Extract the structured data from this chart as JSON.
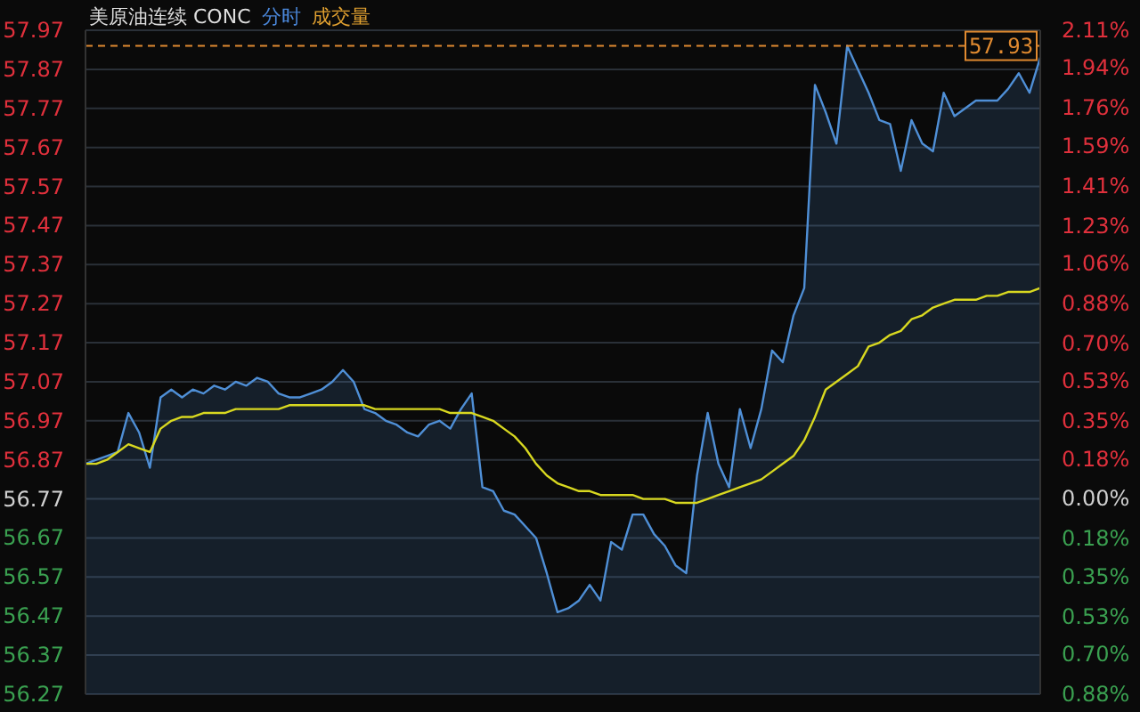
{
  "chart_data": {
    "type": "area",
    "title": "美原油连续 CONC",
    "annotations": [
      "分时",
      "成交量"
    ],
    "categories": [
      null,
      null,
      null,
      null,
      null,
      null,
      null,
      null,
      null,
      null,
      null,
      null,
      null,
      null,
      null,
      null,
      null,
      null,
      null,
      null,
      null,
      null,
      null,
      null,
      null,
      null,
      null,
      null,
      null,
      null,
      null,
      null,
      null,
      null,
      null,
      null,
      null,
      null,
      null,
      null,
      null,
      null,
      null,
      null,
      null,
      null,
      null,
      null,
      null,
      null,
      null,
      null,
      null,
      null,
      null,
      null,
      null,
      null,
      null,
      null,
      null,
      null,
      null,
      null,
      null,
      null,
      null,
      null,
      null,
      null,
      null,
      null,
      null,
      null,
      null,
      null,
      null,
      null,
      null,
      null,
      null,
      null,
      null,
      null,
      null,
      null,
      null,
      null,
      null,
      null
    ],
    "series": [
      {
        "color": "#4f8fd6",
        "values": [
          56.86,
          56.87,
          56.88,
          56.89,
          56.99,
          56.94,
          56.85,
          57.03,
          57.05,
          57.03,
          57.05,
          57.04,
          57.06,
          57.05,
          57.07,
          57.06,
          57.08,
          57.07,
          57.04,
          57.03,
          57.03,
          57.04,
          57.05,
          57.07,
          57.1,
          57.07,
          57.0,
          56.99,
          56.97,
          56.96,
          56.94,
          56.93,
          56.96,
          56.97,
          56.95,
          57.0,
          57.04,
          56.8,
          56.79,
          56.74,
          56.73,
          56.7,
          56.67,
          56.58,
          56.48,
          56.49,
          56.51,
          56.55,
          56.51,
          56.66,
          56.64,
          56.73,
          56.73,
          56.68,
          56.65,
          56.6,
          56.58,
          56.83,
          56.99,
          56.86,
          56.8,
          57.0,
          56.9,
          57.0,
          57.15,
          57.12,
          57.24,
          57.31,
          57.83,
          57.76,
          57.68,
          57.93,
          57.87,
          57.81,
          57.74,
          57.73,
          57.61,
          57.74,
          57.68,
          57.66,
          57.81,
          57.75,
          57.77,
          57.79,
          57.79,
          57.79,
          57.82,
          57.86,
          57.81,
          57.9
        ]
      },
      {
        "type": "line",
        "color": "#d8d820",
        "values": [
          56.86,
          56.86,
          56.87,
          56.89,
          56.91,
          56.9,
          56.89,
          56.95,
          56.97,
          56.98,
          56.98,
          56.99,
          56.99,
          56.99,
          57.0,
          57.0,
          57.0,
          57.0,
          57.0,
          57.01,
          57.01,
          57.01,
          57.01,
          57.01,
          57.01,
          57.01,
          57.01,
          57.0,
          57.0,
          57.0,
          57.0,
          57.0,
          57.0,
          57.0,
          56.99,
          56.99,
          56.99,
          56.98,
          56.97,
          56.95,
          56.93,
          56.9,
          56.86,
          56.83,
          56.81,
          56.8,
          56.79,
          56.79,
          56.78,
          56.78,
          56.78,
          56.78,
          56.77,
          56.77,
          56.77,
          56.76,
          56.76,
          56.76,
          56.77,
          56.78,
          56.79,
          56.8,
          56.81,
          56.82,
          56.84,
          56.86,
          56.88,
          56.92,
          56.98,
          57.05,
          57.07,
          57.09,
          57.11,
          57.16,
          57.17,
          57.19,
          57.2,
          57.23,
          57.24,
          57.26,
          57.27,
          57.28,
          57.28,
          57.28,
          57.29,
          57.29,
          57.3,
          57.3,
          57.3,
          57.31
        ]
      }
    ],
    "ylim": [
      56.27,
      57.97
    ],
    "yticks": [
      56.27,
      56.37,
      56.47,
      56.57,
      56.67,
      56.77,
      56.87,
      56.97,
      57.07,
      57.17,
      57.27,
      57.37,
      57.47,
      57.57,
      57.67,
      57.77,
      57.87,
      57.97
    ],
    "y2lim": [
      -0.88,
      2.11
    ],
    "y2ticks": [
      {
        "value": -0.88,
        "label": "0.88%"
      },
      {
        "value": -0.7,
        "label": "0.70%"
      },
      {
        "value": -0.53,
        "label": "0.53%"
      },
      {
        "value": -0.35,
        "label": "0.35%"
      },
      {
        "value": -0.18,
        "label": "0.18%"
      },
      {
        "value": 0,
        "label": "0.00%"
      },
      {
        "value": 0.18,
        "label": "0.18%"
      },
      {
        "value": 0.35,
        "label": "0.35%"
      },
      {
        "value": 0.53,
        "label": "0.53%"
      },
      {
        "value": 0.7,
        "label": "0.70%"
      },
      {
        "value": 0.88,
        "label": "0.88%"
      },
      {
        "value": 1.06,
        "label": "1.06%"
      },
      {
        "value": 1.23,
        "label": "1.23%"
      },
      {
        "value": 1.41,
        "label": "1.41%"
      },
      {
        "value": 1.59,
        "label": "1.59%"
      },
      {
        "value": 1.76,
        "label": "1.76%"
      },
      {
        "value": 1.94,
        "label": "1.94%"
      },
      {
        "value": 2.11,
        "label": "2.11%"
      }
    ],
    "ref_lines": [
      {
        "axis": "y",
        "value": 57.93,
        "label": "57.93",
        "color": "#e08a30",
        "line_style": "dashed"
      }
    ],
    "grid": "y",
    "tick_labels": "y"
  }
}
